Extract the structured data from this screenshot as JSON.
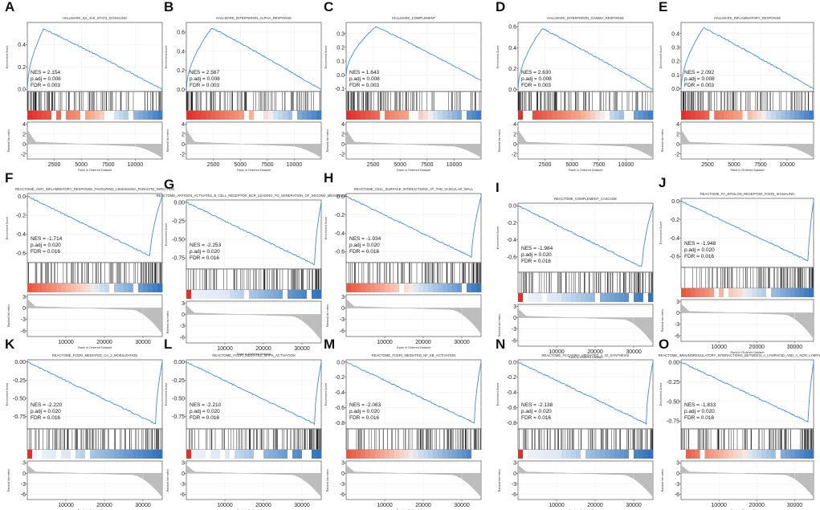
{
  "figure": {
    "x_axis_label": "Rank in Ordered Dataset",
    "es_axis_label": "Enrichment Score",
    "metric_axis_label": "Ranked list metric",
    "stat_keys": {
      "nes": "NES",
      "padj": "p.adj",
      "fdr": "FDR"
    }
  },
  "chart_data": [
    {
      "type": "line",
      "panel": "A",
      "title": "HALLMARK_IL6_JAK_STAT3_SIGNALING",
      "nes": "2.154",
      "padj": "0.008",
      "fdr": "0.003",
      "es_ticks": [
        "0.0",
        "0.2",
        "0.4"
      ],
      "es_tick_values": [
        0,
        0.2,
        0.4
      ],
      "es_range": [
        -0.02,
        0.6
      ],
      "peak": 0.54,
      "peak_frac": 0.12,
      "end_value": 0.0,
      "metric_ticks": [
        "4",
        "2",
        "0",
        "-2"
      ],
      "metric_tick_values": [
        4,
        2,
        0,
        -2
      ],
      "metric_range": [
        -3,
        4.4
      ],
      "x_ticks": [
        "2500",
        "5000",
        "7500",
        "10000"
      ],
      "x_tick_values": [
        2500,
        5000,
        7500,
        10000
      ],
      "x_max": 12500,
      "ladder": "red"
    },
    {
      "type": "line",
      "panel": "B",
      "title": "HALLMARK_INTERFERON_ALPHA_RESPONSE",
      "nes": "2.567",
      "padj": "0.008",
      "fdr": "0.003",
      "es_ticks": [
        "0.0",
        "0.2",
        "0.4",
        "0.6"
      ],
      "es_tick_values": [
        0,
        0.2,
        0.4,
        0.6
      ],
      "es_range": [
        -0.02,
        0.7
      ],
      "peak": 0.64,
      "peak_frac": 0.19,
      "end_value": 0.0,
      "metric_ticks": [
        "4",
        "2",
        "0",
        "-2"
      ],
      "metric_tick_values": [
        4,
        2,
        0,
        -2
      ],
      "metric_range": [
        -3,
        4.4
      ],
      "x_ticks": [
        "2500",
        "5000",
        "7500",
        "10000"
      ],
      "x_tick_values": [
        2500,
        5000,
        7500,
        10000
      ],
      "x_max": 12500,
      "ladder": "red"
    },
    {
      "type": "line",
      "panel": "C",
      "title": "HALLMARK_COMPLEMENT",
      "nes": "1.643",
      "padj": "0.008",
      "fdr": "0.003",
      "es_ticks": [
        "-0.1",
        "0.0",
        "0.1",
        "0.2",
        "0.3"
      ],
      "es_tick_values": [
        -0.1,
        0,
        0.1,
        0.2,
        0.3
      ],
      "es_range": [
        -0.12,
        0.38
      ],
      "peak": 0.35,
      "peak_frac": 0.22,
      "end_value": -0.04,
      "metric_ticks": [
        "4",
        "2",
        "0",
        "-2"
      ],
      "metric_tick_values": [
        4,
        2,
        0,
        -2
      ],
      "metric_range": [
        -3,
        4.4
      ],
      "x_ticks": [
        "2500",
        "5000",
        "7500",
        "10000"
      ],
      "x_tick_values": [
        2500,
        5000,
        7500,
        10000
      ],
      "x_max": 12500,
      "ladder": "red"
    },
    {
      "type": "line",
      "panel": "D",
      "title": "HALLMARK_INTERFERON_GAMMA_RESPONSE",
      "nes": "2.630",
      "padj": "0.008",
      "fdr": "0.003",
      "es_ticks": [
        "0.0",
        "0.2",
        "0.4",
        "0.6"
      ],
      "es_tick_values": [
        0,
        0.2,
        0.4,
        0.6
      ],
      "es_range": [
        -0.02,
        0.64
      ],
      "peak": 0.58,
      "peak_frac": 0.18,
      "end_value": 0.0,
      "metric_ticks": [
        "4",
        "2",
        "0",
        "-2"
      ],
      "metric_tick_values": [
        4,
        2,
        0,
        -2
      ],
      "metric_range": [
        -3,
        4.4
      ],
      "x_ticks": [
        "2500",
        "5000",
        "7500",
        "10000"
      ],
      "x_tick_values": [
        2500,
        5000,
        7500,
        10000
      ],
      "x_max": 12500,
      "ladder": "red"
    },
    {
      "type": "line",
      "panel": "E",
      "title": "HALLMARK_INFLAMMATORY_RESPONSE",
      "nes": "2.092",
      "padj": "0.008",
      "fdr": "0.003",
      "es_ticks": [
        "0.0",
        "0.1",
        "0.2",
        "0.3",
        "0.4"
      ],
      "es_tick_values": [
        0,
        0.1,
        0.2,
        0.3,
        0.4
      ],
      "es_range": [
        -0.02,
        0.48
      ],
      "peak": 0.44,
      "peak_frac": 0.17,
      "end_value": 0.0,
      "metric_ticks": [
        "4",
        "2",
        "0",
        "-2"
      ],
      "metric_tick_values": [
        4,
        2,
        0,
        -2
      ],
      "metric_range": [
        -3,
        4.4
      ],
      "x_ticks": [
        "2500",
        "5000",
        "7500",
        "10000"
      ],
      "x_tick_values": [
        2500,
        5000,
        7500,
        10000
      ],
      "x_max": 12500,
      "ladder": "red"
    },
    {
      "type": "line",
      "panel": "F",
      "title": "REACTOME_ANTI_INFLAMMATORY_RESPONSE_FAVOURING_LEISHMANIA_PARASITE_INFECTION",
      "nes": "-1.714",
      "padj": "0.020",
      "fdr": "0.016",
      "es_ticks": [
        "0.0",
        "-0.2",
        "-0.4",
        "-0.6"
      ],
      "es_tick_values": [
        0,
        -0.2,
        -0.4,
        -0.6
      ],
      "es_range": [
        -0.7,
        0.03
      ],
      "peak": -0.63,
      "peak_frac": 0.91,
      "end_value": 0.0,
      "metric_ticks": [
        "3",
        "0",
        "-3",
        "-6"
      ],
      "metric_tick_values": [
        3,
        0,
        -3,
        -6
      ],
      "metric_range": [
        -7.5,
        3.5
      ],
      "x_ticks": [
        "10000",
        "20000",
        "30000"
      ],
      "x_tick_values": [
        10000,
        20000,
        30000
      ],
      "x_max": 35000,
      "ladder": "mixed"
    },
    {
      "type": "line",
      "panel": "G",
      "title": "REACTOME_ANTIGEN_ACTIVATES_B_CELL_RECEPTOR_BCR_LEADING_TO_GENERATION_OF_SECOND_MESSENGERS",
      "nes": "-2.253",
      "padj": "0.020",
      "fdr": "0.016",
      "es_ticks": [
        "0.00",
        "-0.25",
        "-0.50",
        "-0.75"
      ],
      "es_tick_values": [
        0,
        -0.25,
        -0.5,
        -0.75
      ],
      "es_range": [
        -0.9,
        0.03
      ],
      "peak": -0.84,
      "peak_frac": 0.95,
      "end_value": 0.0,
      "metric_ticks": [
        "3",
        "0",
        "-3",
        "-6"
      ],
      "metric_tick_values": [
        3,
        0,
        -3,
        -6
      ],
      "metric_range": [
        -7.5,
        3.5
      ],
      "x_ticks": [
        "10000",
        "20000",
        "30000"
      ],
      "x_tick_values": [
        10000,
        20000,
        30000
      ],
      "x_max": 35000,
      "ladder": "blue"
    },
    {
      "type": "line",
      "panel": "H",
      "title": "REACTOME_CELL_SURFACE_INTERACTIONS_AT_THE_VASCULAR_WALL",
      "nes": "-1.934",
      "padj": "0.020",
      "fdr": "0.016",
      "es_ticks": [
        "0.0",
        "-0.2",
        "-0.4",
        "-0.6"
      ],
      "es_tick_values": [
        0,
        -0.2,
        -0.4,
        -0.6
      ],
      "es_range": [
        -0.72,
        0.03
      ],
      "peak": -0.66,
      "peak_frac": 0.93,
      "end_value": 0.0,
      "metric_ticks": [
        "3",
        "0",
        "-3",
        "-6"
      ],
      "metric_tick_values": [
        3,
        0,
        -3,
        -6
      ],
      "metric_range": [
        -7.5,
        3.5
      ],
      "x_ticks": [
        "10000",
        "20000",
        "30000"
      ],
      "x_tick_values": [
        10000,
        20000,
        30000
      ],
      "x_max": 35000,
      "ladder": "mixed"
    },
    {
      "type": "line",
      "panel": "I",
      "title": "REACTOME_COMPLEMENT_CASCADE",
      "nes": "-1.984",
      "padj": "0.020",
      "fdr": "0.016",
      "es_ticks": [
        "0.0",
        "-0.2",
        "-0.4",
        "-0.6"
      ],
      "es_tick_values": [
        0,
        -0.2,
        -0.4,
        -0.6
      ],
      "es_range": [
        -0.78,
        0.03
      ],
      "peak": -0.72,
      "peak_frac": 0.92,
      "end_value": 0.0,
      "metric_ticks": [
        "3",
        "0",
        "-3",
        "-6"
      ],
      "metric_tick_values": [
        3,
        0,
        -3,
        -6
      ],
      "metric_range": [
        -7.5,
        3.5
      ],
      "x_ticks": [
        "10000",
        "20000",
        "30000"
      ],
      "x_tick_values": [
        10000,
        20000,
        30000
      ],
      "x_max": 35000,
      "ladder": "blue"
    },
    {
      "type": "line",
      "panel": "J",
      "title": "REACTOME_FC_EPSILON_RECEPTOR_FCERI_SIGNALING",
      "nes": "-1.948",
      "padj": "0.020",
      "fdr": "0.016",
      "es_ticks": [
        "0.0",
        "-0.2",
        "-0.4",
        "-0.6"
      ],
      "es_tick_values": [
        0,
        -0.2,
        -0.4,
        -0.6
      ],
      "es_range": [
        -0.72,
        0.03
      ],
      "peak": -0.65,
      "peak_frac": 0.96,
      "end_value": 0.0,
      "metric_ticks": [
        "3",
        "0",
        "-3",
        "-6"
      ],
      "metric_tick_values": [
        3,
        0,
        -3,
        -6
      ],
      "metric_range": [
        -7.5,
        3.5
      ],
      "x_ticks": [
        "10000",
        "20000",
        "30000"
      ],
      "x_tick_values": [
        10000,
        20000,
        30000
      ],
      "x_max": 35000,
      "ladder": "mixed"
    },
    {
      "type": "line",
      "panel": "K",
      "title": "REACTOME_FCERI_MEDIATED_CA_2_MOBILIZATION",
      "nes": "-2.220",
      "padj": "0.020",
      "fdr": "0.016",
      "es_ticks": [
        "0.00",
        "-0.25",
        "-0.50",
        "-0.75"
      ],
      "es_tick_values": [
        0,
        -0.25,
        -0.5,
        -0.75
      ],
      "es_range": [
        -0.92,
        0.03
      ],
      "peak": -0.85,
      "peak_frac": 0.95,
      "end_value": 0.0,
      "metric_ticks": [
        "3",
        "0",
        "-3",
        "-6"
      ],
      "metric_tick_values": [
        3,
        0,
        -3,
        -6
      ],
      "metric_range": [
        -7.5,
        3.5
      ],
      "x_ticks": [
        "10000",
        "20000",
        "30000"
      ],
      "x_tick_values": [
        10000,
        20000,
        30000
      ],
      "x_max": 35000,
      "ladder": "blue"
    },
    {
      "type": "line",
      "panel": "L",
      "title": "REACTOME_FCERI_MEDIATED_MAPK_ACTIVATION",
      "nes": "-2.210",
      "padj": "0.020",
      "fdr": "0.016",
      "es_ticks": [
        "0.00",
        "-0.25",
        "-0.50",
        "-0.75"
      ],
      "es_tick_values": [
        0,
        -0.25,
        -0.5,
        -0.75
      ],
      "es_range": [
        -0.92,
        0.03
      ],
      "peak": -0.85,
      "peak_frac": 0.95,
      "end_value": 0.0,
      "metric_ticks": [
        "3",
        "0",
        "-3",
        "-6"
      ],
      "metric_tick_values": [
        3,
        0,
        -3,
        -6
      ],
      "metric_range": [
        -7.5,
        3.5
      ],
      "x_ticks": [
        "10000",
        "20000",
        "30000"
      ],
      "x_tick_values": [
        10000,
        20000,
        30000
      ],
      "x_max": 35000,
      "ladder": "blue"
    },
    {
      "type": "line",
      "panel": "M",
      "title": "REACTOME_FCERI_MEDIATED_NF_KB_ACTIVATION",
      "nes": "-2.063",
      "padj": "0.020",
      "fdr": "0.016",
      "es_ticks": [
        "0.0",
        "-0.2",
        "-0.4",
        "-0.6",
        "-0.8"
      ],
      "es_tick_values": [
        0,
        -0.2,
        -0.4,
        -0.6,
        -0.8
      ],
      "es_range": [
        -0.88,
        0.03
      ],
      "peak": -0.8,
      "peak_frac": 0.95,
      "end_value": 0.0,
      "metric_ticks": [
        "3",
        "0",
        "-3",
        "-6"
      ],
      "metric_tick_values": [
        3,
        0,
        -3,
        -6
      ],
      "metric_range": [
        -7.5,
        3.5
      ],
      "x_ticks": [
        "10000",
        "20000",
        "30000"
      ],
      "x_tick_values": [
        10000,
        20000,
        30000
      ],
      "x_max": 35000,
      "ladder": "mixed"
    },
    {
      "type": "line",
      "panel": "N",
      "title": "REACTOME_FCGAMMA_MEDIATED_A_IG_SYNTHESIS",
      "nes": "-2.138",
      "padj": "0.020",
      "fdr": "0.016",
      "es_ticks": [
        "0.0",
        "-0.2",
        "-0.4",
        "-0.6",
        "-0.8"
      ],
      "es_tick_values": [
        0,
        -0.2,
        -0.4,
        -0.6,
        -0.8
      ],
      "es_range": [
        -0.88,
        0.03
      ],
      "peak": -0.81,
      "peak_frac": 0.95,
      "end_value": 0.0,
      "metric_ticks": [
        "3",
        "0",
        "-3",
        "-6"
      ],
      "metric_tick_values": [
        3,
        0,
        -3,
        -6
      ],
      "metric_range": [
        -7.5,
        3.5
      ],
      "x_ticks": [
        "10000",
        "20000",
        "30000"
      ],
      "x_tick_values": [
        10000,
        20000,
        30000
      ],
      "x_max": 35000,
      "ladder": "blue"
    },
    {
      "type": "line",
      "panel": "O",
      "title": "REACTOME_IMMUNOREGULATORY_INTERACTIONS_BETWEEN_A_LYMPHOID_AND_A_NON_LYMPHOID_CELL",
      "nes": "-1.833",
      "padj": "0.020",
      "fdr": "0.016",
      "es_ticks": [
        "0.00",
        "-0.25",
        "-0.50",
        "-0.75"
      ],
      "es_tick_values": [
        0,
        -0.25,
        -0.5,
        -0.75
      ],
      "es_range": [
        -0.85,
        0.03
      ],
      "peak": -0.76,
      "peak_frac": 0.96,
      "end_value": 0.0,
      "metric_ticks": [
        "3",
        "0",
        "-3",
        "-6"
      ],
      "metric_tick_values": [
        3,
        0,
        -3,
        -6
      ],
      "metric_range": [
        -7.5,
        3.5
      ],
      "x_ticks": [
        "10000",
        "20000",
        "30000"
      ],
      "x_tick_values": [
        10000,
        20000,
        30000
      ],
      "x_max": 35000,
      "ladder": "mixed"
    }
  ]
}
